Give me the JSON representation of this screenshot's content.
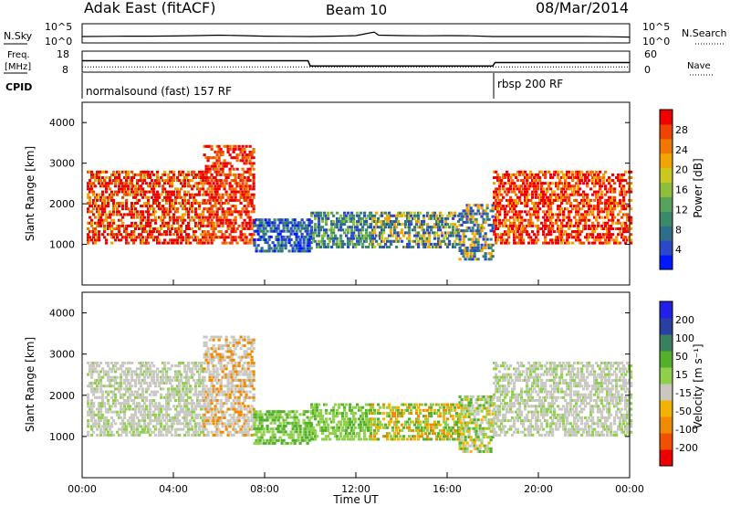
{
  "header": {
    "station": "Adak East (fitACF)",
    "beam": "Beam 10",
    "date": "08/Mar/2014"
  },
  "left_labels": {
    "nsky": "N.Sky",
    "freq_line1": "Freq.",
    "freq_line2": "[MHz]",
    "cpid": "CPID"
  },
  "right_labels": {
    "nsearch": "N.Search",
    "nave": "Nave"
  },
  "ticks": {
    "noise_left": [
      "10^5",
      "10^0"
    ],
    "noise_right": [
      "10^5",
      "10^0"
    ],
    "freq_left": [
      "18",
      "8"
    ],
    "nave_right": [
      "60",
      "0"
    ],
    "range": [
      "1000",
      "2000",
      "3000",
      "4000"
    ],
    "time": [
      "00:00",
      "04:00",
      "08:00",
      "12:00",
      "16:00",
      "20:00",
      "00:00"
    ]
  },
  "cpid_segments": [
    "normalsound (fast) 157 RF",
    "rbsp 200 RF"
  ],
  "axes": {
    "ylabel_power": "Slant Range [km]",
    "ylabel_velocity": "Slant Range [km]",
    "xlabel": "Time UT"
  },
  "colorbars": {
    "power": {
      "label": "Power [dB]",
      "ticks": [
        "28",
        "24",
        "20",
        "16",
        "12",
        "8",
        "4"
      ],
      "colors": [
        "#0018ff",
        "#2a48c8",
        "#2f6e8a",
        "#3a8a6a",
        "#57a35a",
        "#8fbf3a",
        "#c8c820",
        "#f2a400",
        "#f07800",
        "#ee4400",
        "#ee0000"
      ]
    },
    "velocity": {
      "label": "Velocity [m s⁻¹]",
      "ticks": [
        "200",
        "100",
        "50",
        "15",
        "-15",
        "-50",
        "-100",
        "-200"
      ],
      "colors": [
        "#ee0000",
        "#f05000",
        "#f08a00",
        "#f2b400",
        "#c8c8c0",
        "#8ed04a",
        "#52b02a",
        "#3a8060",
        "#2a40a0",
        "#2020e8"
      ]
    }
  },
  "chart_data": [
    {
      "type": "line",
      "title": "N.Sky / N.Search",
      "x_range": [
        "00:00",
        "24:00"
      ],
      "y_scale": "log",
      "ylim": [
        1,
        100000
      ],
      "series": [
        {
          "name": "N.Sky",
          "x": [
            0,
            1,
            2,
            3,
            4,
            5,
            6,
            7,
            8,
            9,
            10,
            11,
            12,
            12.8,
            13,
            14,
            15,
            16,
            17,
            18,
            19,
            20,
            21,
            22,
            23,
            24
          ],
          "y": [
            30,
            35,
            40,
            40,
            45,
            60,
            80,
            60,
            40,
            35,
            30,
            40,
            60,
            800,
            80,
            60,
            50,
            60,
            50,
            30,
            30,
            30,
            30,
            30,
            25,
            20
          ]
        }
      ]
    },
    {
      "type": "line",
      "title": "Freq. / Nave",
      "x_range": [
        "00:00",
        "24:00"
      ],
      "ylim_freq": [
        8,
        18
      ],
      "ylim_nave": [
        0,
        60
      ],
      "series": [
        {
          "name": "Freq.",
          "x": [
            0,
            9.9,
            10.0,
            18.0,
            18.1,
            24
          ],
          "y": [
            13.5,
            13.5,
            10.5,
            10.5,
            12.5,
            12.5
          ]
        },
        {
          "name": "Nave",
          "x": [
            0,
            24
          ],
          "y": [
            12,
            12
          ]
        }
      ]
    },
    {
      "type": "heatmap",
      "title": "Power [dB]",
      "xlabel": "Time UT",
      "ylabel": "Slant Range [km]",
      "xlim": [
        "00:00",
        "24:00"
      ],
      "ylim": [
        0,
        4500
      ],
      "zlim": [
        0,
        32
      ]
    },
    {
      "type": "heatmap",
      "title": "Velocity [m s⁻¹]",
      "xlabel": "Time UT",
      "ylabel": "Slant Range [km]",
      "xlim": [
        "00:00",
        "24:00"
      ],
      "ylim": [
        0,
        4500
      ],
      "zlim": [
        -250,
        250
      ]
    }
  ]
}
